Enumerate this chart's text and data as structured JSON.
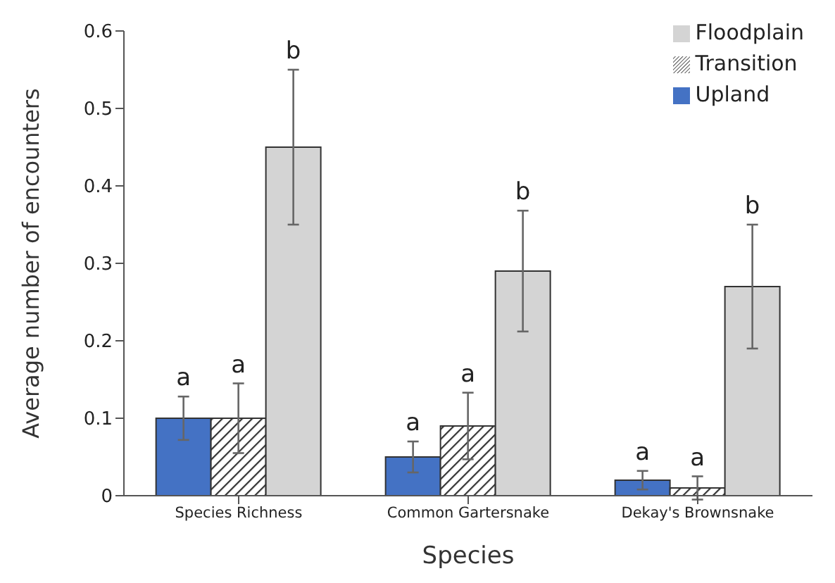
{
  "chart_data": {
    "type": "bar",
    "xlabel": "Species",
    "ylabel": "Average number of encounters",
    "categories": [
      "Species Richness",
      "Common Gartersnake",
      "Dekay's Brownsnake"
    ],
    "series": [
      {
        "name": "Upland",
        "color": "#4472c4",
        "values": [
          0.1,
          0.05,
          0.02
        ],
        "errors": [
          0.028,
          0.02,
          0.012
        ]
      },
      {
        "name": "Transition",
        "color": "#333333",
        "values": [
          0.1,
          0.09,
          0.01
        ],
        "errors": [
          0.045,
          0.043,
          0.015
        ]
      },
      {
        "name": "Floodplain",
        "color": "#d4d4d4",
        "values": [
          0.45,
          0.29,
          0.27
        ],
        "errors": [
          0.1,
          0.078,
          0.08
        ]
      }
    ],
    "ylim": [
      0,
      0.6
    ],
    "yticks": [
      0,
      0.1,
      0.2,
      0.3,
      0.4,
      0.5,
      0.6
    ],
    "grid": false,
    "legend": "top right",
    "annotations": [
      "a",
      "a",
      "b",
      "a",
      "a",
      "b",
      "a",
      "a",
      "b"
    ]
  }
}
